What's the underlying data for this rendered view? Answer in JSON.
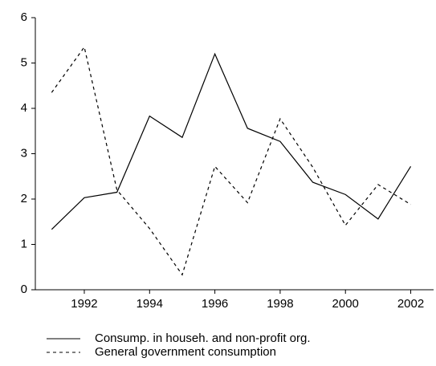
{
  "chart_data": {
    "type": "line",
    "x": [
      1991,
      1992,
      1993,
      1994,
      1995,
      1996,
      1997,
      1998,
      1999,
      2000,
      2001,
      2002
    ],
    "series": [
      {
        "name": "Consump. in househ. and non-profit org.",
        "color": "#000000",
        "dash": "solid",
        "values": [
          1.33,
          2.03,
          2.15,
          3.83,
          3.36,
          5.2,
          3.56,
          3.27,
          2.37,
          2.1,
          1.56,
          2.72
        ]
      },
      {
        "name": "General government consumption",
        "color": "#000000",
        "dash": "dashed",
        "values": [
          4.35,
          5.35,
          2.2,
          1.35,
          0.33,
          2.72,
          1.92,
          3.77,
          2.7,
          1.42,
          2.32,
          1.88
        ]
      }
    ],
    "xlim": [
      1990.5,
      2002.7
    ],
    "xticks": [
      1992,
      1994,
      1996,
      1998,
      2000,
      2002
    ],
    "ylim": [
      0,
      6
    ],
    "yticks": [
      0,
      1,
      2,
      3,
      4,
      5,
      6
    ],
    "grid": false
  }
}
